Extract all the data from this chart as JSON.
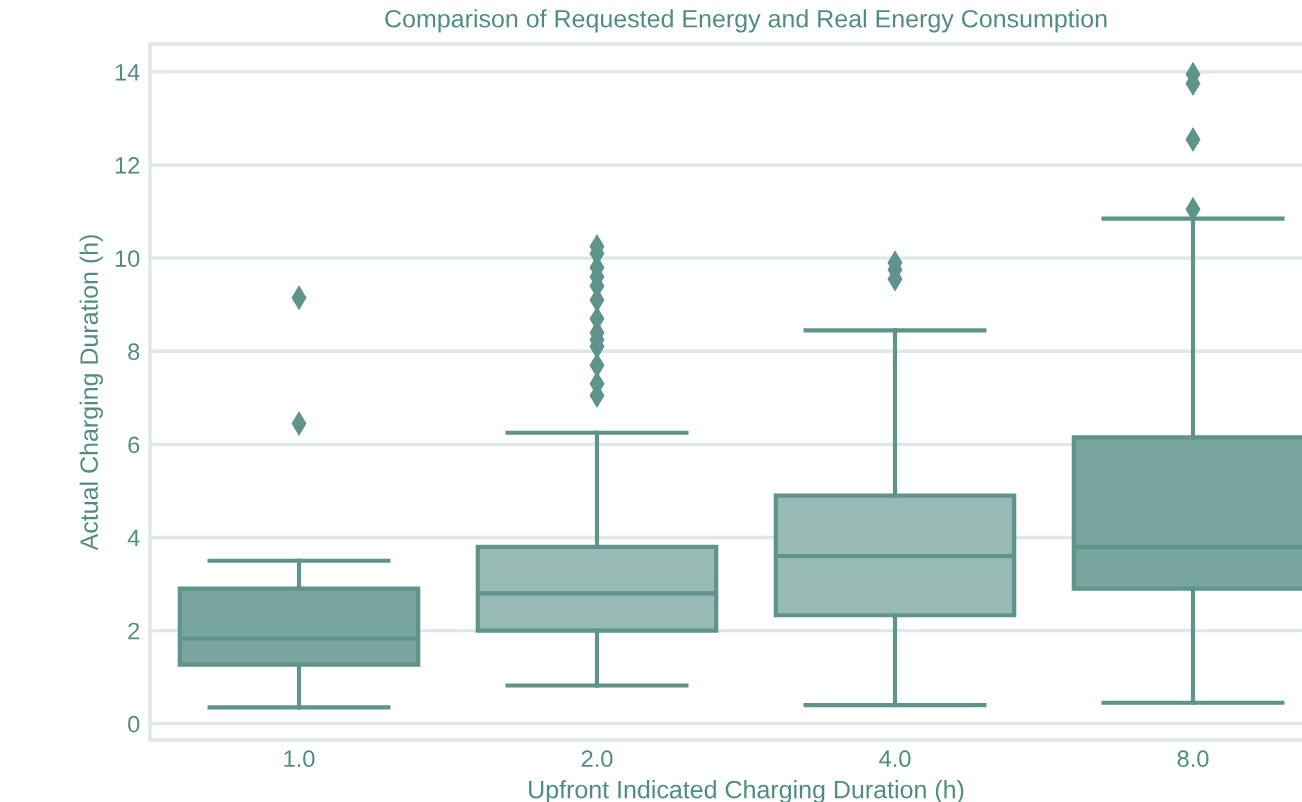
{
  "chart_data": {
    "type": "box",
    "title": "Comparison of Requested Energy and Real Energy Consumption",
    "xlabel": "Upfront Indicated Charging Duration (h)",
    "ylabel": "Actual Charging Duration (h)",
    "categories": [
      "1.0",
      "2.0",
      "4.0",
      "8.0"
    ],
    "colors": [
      "#78a69f",
      "#97bab5",
      "#97bab5",
      "#78a69f"
    ],
    "boxes": [
      {
        "low": 0.35,
        "q1": 1.27,
        "median": 1.83,
        "q3": 2.9,
        "high": 3.5,
        "outliers": [
          6.45,
          9.15
        ]
      },
      {
        "low": 0.82,
        "q1": 2.0,
        "median": 2.8,
        "q3": 3.8,
        "high": 6.25,
        "outliers": [
          7.05,
          7.3,
          7.7,
          8.1,
          8.25,
          8.4,
          8.7,
          9.1,
          9.4,
          9.6,
          9.8,
          10.1,
          10.25
        ]
      },
      {
        "low": 0.4,
        "q1": 2.33,
        "median": 3.6,
        "q3": 4.9,
        "high": 8.45,
        "outliers": [
          9.55,
          9.75,
          9.9
        ]
      },
      {
        "low": 0.45,
        "q1": 2.9,
        "median": 3.8,
        "q3": 6.15,
        "high": 10.85,
        "outliers": [
          11.05,
          12.55,
          13.75,
          13.95
        ]
      }
    ],
    "ylim": [
      -0.35,
      14.6
    ],
    "yticks": [
      0,
      2,
      4,
      6,
      8,
      10,
      12,
      14
    ],
    "grid": "y",
    "marker": "diamond"
  }
}
